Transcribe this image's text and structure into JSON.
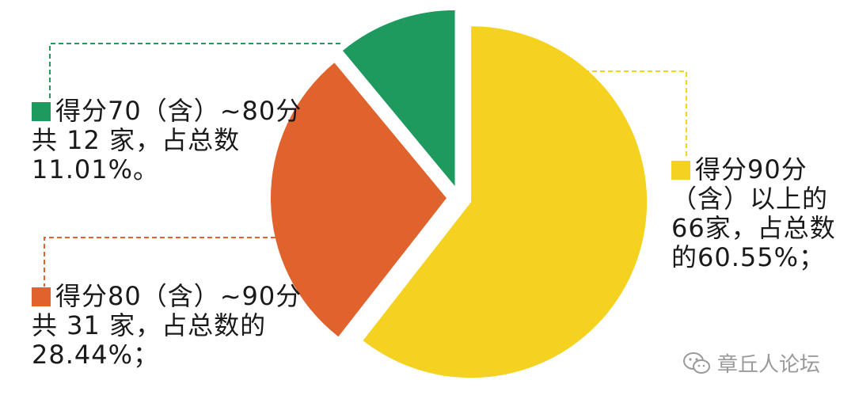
{
  "chart_data": {
    "type": "pie",
    "slices": [
      {
        "label_lines": [
          "得分90分",
          "（含）以上的",
          "66家，占总数",
          "的60.55%；"
        ],
        "value": 66,
        "percent": 60.55,
        "color": "#f5d21f"
      },
      {
        "label_lines": [
          "得分80（含）~90分",
          "共 31 家，占总数的",
          "28.44%；"
        ],
        "value": 31,
        "percent": 28.44,
        "color": "#e0622c"
      },
      {
        "label_lines": [
          "得分70（含）~80分",
          "共 12 家，占总数",
          "11.01%。"
        ],
        "value": 12,
        "percent": 11.01,
        "color": "#1f9a5e"
      }
    ],
    "start_angle_deg": 0,
    "direction": "clockwise",
    "exploded": true
  },
  "watermark": {
    "text": "章丘人论坛",
    "icon": "wechat-icon"
  }
}
